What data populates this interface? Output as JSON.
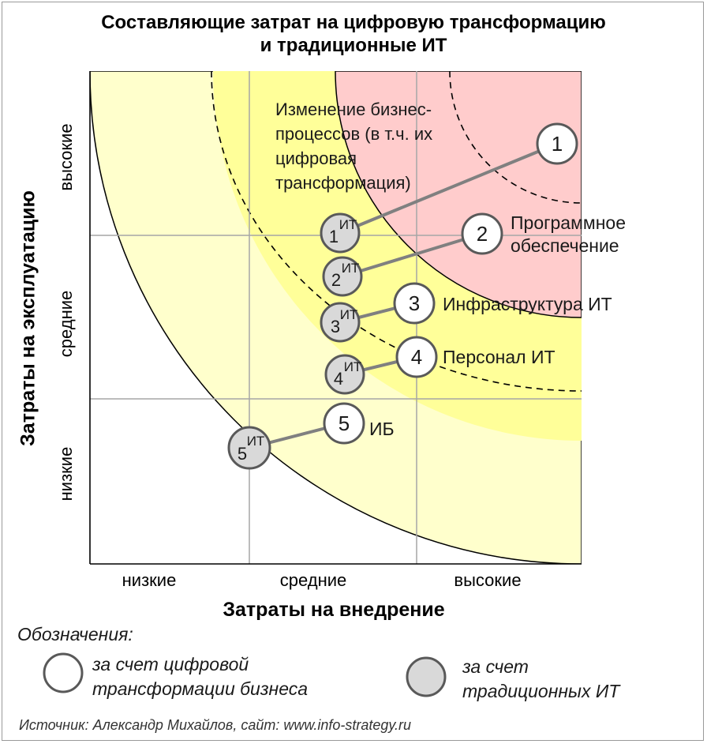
{
  "title_lines": [
    "Составляющие затрат на цифровую трансформацию",
    "и традиционные ИТ"
  ],
  "x_axis": {
    "title": "Затраты на внедрение",
    "ticks": [
      "низкие",
      "средние",
      "высокие"
    ]
  },
  "y_axis": {
    "title": "Затраты на эксплуатацию",
    "ticks": [
      "низкие",
      "средние",
      "высокие"
    ]
  },
  "zone_label": [
    "Изменение бизнес-",
    "процессов (в т.ч. их",
    "цифровая",
    "трансформация)"
  ],
  "colors": {
    "outer_zone": "#ffffcc",
    "middle_zone": "#ffff99",
    "inner_zone": "#ffcccc",
    "it_circle_fill": "#d9d9d9",
    "circle_stroke": "#595959",
    "connector": "#808080"
  },
  "items": [
    {
      "id": "1",
      "it_label": "1",
      "it_sup": "ИТ",
      "label": []
    },
    {
      "id": "2",
      "it_label": "2",
      "it_sup": "ИТ",
      "label": [
        "Программное",
        "обеспечение"
      ]
    },
    {
      "id": "3",
      "it_label": "3",
      "it_sup": "ИТ",
      "label": [
        "Инфраструктура ИТ"
      ]
    },
    {
      "id": "4",
      "it_label": "4",
      "it_sup": "ИТ",
      "label": [
        "Персонал ИТ"
      ]
    },
    {
      "id": "5",
      "it_label": "5",
      "it_sup": "ИТ",
      "label": [
        "ИБ"
      ]
    }
  ],
  "legend": {
    "heading": "Обозначения:",
    "digital": [
      "за счет цифровой",
      "трансформации бизнеса"
    ],
    "traditional": [
      "за счет",
      "традиционных ИТ"
    ]
  },
  "source": "Источник: Александр Михайлов, сайт: www.info-strategy.ru"
}
